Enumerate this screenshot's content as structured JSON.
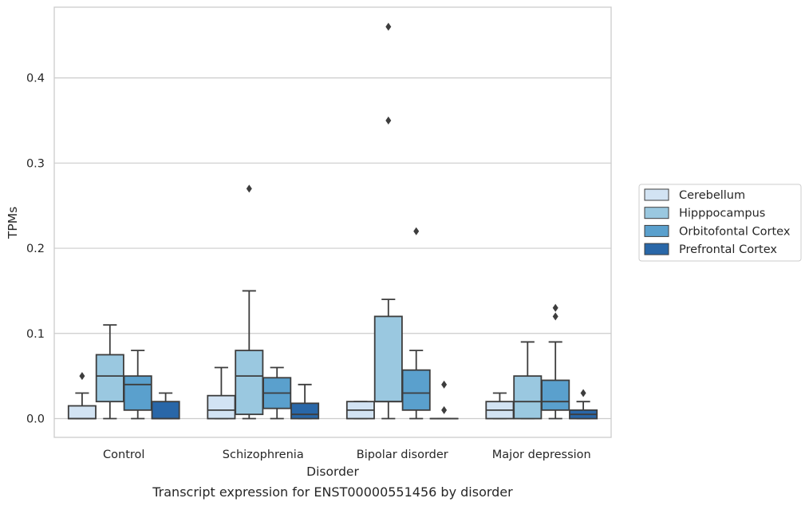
{
  "chart_data": {
    "type": "box",
    "title": "",
    "caption": "Transcript expression for ENST00000551456 by disorder",
    "xlabel": "Disorder",
    "ylabel": "TPMs",
    "ylim": [
      -0.022,
      0.483
    ],
    "yticks": [
      "0.0",
      "0.1",
      "0.2",
      "0.3",
      "0.4"
    ],
    "grid": "horizontal",
    "legend_position": "right",
    "categories": [
      "Control",
      "Schizophrenia",
      "Bipolar disorder",
      "Major depression"
    ],
    "series": [
      {
        "name": "Cerebellum",
        "color": "#d2e3f3",
        "boxes": [
          {
            "whislo": 0.0,
            "q1": 0.0,
            "med": 0.0,
            "q3": 0.015,
            "whishi": 0.03,
            "fliers": [
              0.05
            ]
          },
          {
            "whislo": 0.0,
            "q1": 0.0,
            "med": 0.01,
            "q3": 0.027,
            "whishi": 0.06,
            "fliers": []
          },
          {
            "whislo": 0.0,
            "q1": 0.0,
            "med": 0.01,
            "q3": 0.02,
            "whishi": 0.02,
            "fliers": []
          },
          {
            "whislo": 0.0,
            "q1": 0.0,
            "med": 0.01,
            "q3": 0.02,
            "whishi": 0.03,
            "fliers": []
          }
        ]
      },
      {
        "name": "Hipppocampus",
        "color": "#9ac8e0",
        "boxes": [
          {
            "whislo": 0.0,
            "q1": 0.02,
            "med": 0.05,
            "q3": 0.075,
            "whishi": 0.11,
            "fliers": []
          },
          {
            "whislo": 0.0,
            "q1": 0.005,
            "med": 0.05,
            "q3": 0.08,
            "whishi": 0.15,
            "fliers": [
              0.27
            ]
          },
          {
            "whislo": 0.0,
            "q1": 0.02,
            "med": 0.02,
            "q3": 0.12,
            "whishi": 0.14,
            "fliers": [
              0.35,
              0.46
            ]
          },
          {
            "whislo": 0.0,
            "q1": 0.0,
            "med": 0.02,
            "q3": 0.05,
            "whishi": 0.09,
            "fliers": []
          }
        ]
      },
      {
        "name": "Orbitofontal Cortex",
        "color": "#5aa0cd",
        "boxes": [
          {
            "whislo": 0.0,
            "q1": 0.01,
            "med": 0.04,
            "q3": 0.05,
            "whishi": 0.08,
            "fliers": []
          },
          {
            "whislo": 0.0,
            "q1": 0.012,
            "med": 0.03,
            "q3": 0.048,
            "whishi": 0.06,
            "fliers": []
          },
          {
            "whislo": 0.0,
            "q1": 0.01,
            "med": 0.03,
            "q3": 0.057,
            "whishi": 0.08,
            "fliers": [
              0.22
            ]
          },
          {
            "whislo": 0.0,
            "q1": 0.01,
            "med": 0.02,
            "q3": 0.045,
            "whishi": 0.09,
            "fliers": [
              0.12,
              0.13
            ]
          }
        ]
      },
      {
        "name": "Prefrontal Cortex",
        "color": "#2967a8",
        "boxes": [
          {
            "whislo": 0.0,
            "q1": 0.0,
            "med": 0.0,
            "q3": 0.02,
            "whishi": 0.03,
            "fliers": []
          },
          {
            "whislo": 0.0,
            "q1": 0.0,
            "med": 0.005,
            "q3": 0.018,
            "whishi": 0.04,
            "fliers": []
          },
          {
            "whislo": 0.0,
            "q1": 0.0,
            "med": 0.0,
            "q3": 0.0,
            "whishi": 0.0,
            "fliers": [
              0.01,
              0.04
            ]
          },
          {
            "whislo": 0.0,
            "q1": 0.0,
            "med": 0.005,
            "q3": 0.01,
            "whishi": 0.02,
            "fliers": [
              0.03
            ]
          }
        ]
      }
    ]
  }
}
